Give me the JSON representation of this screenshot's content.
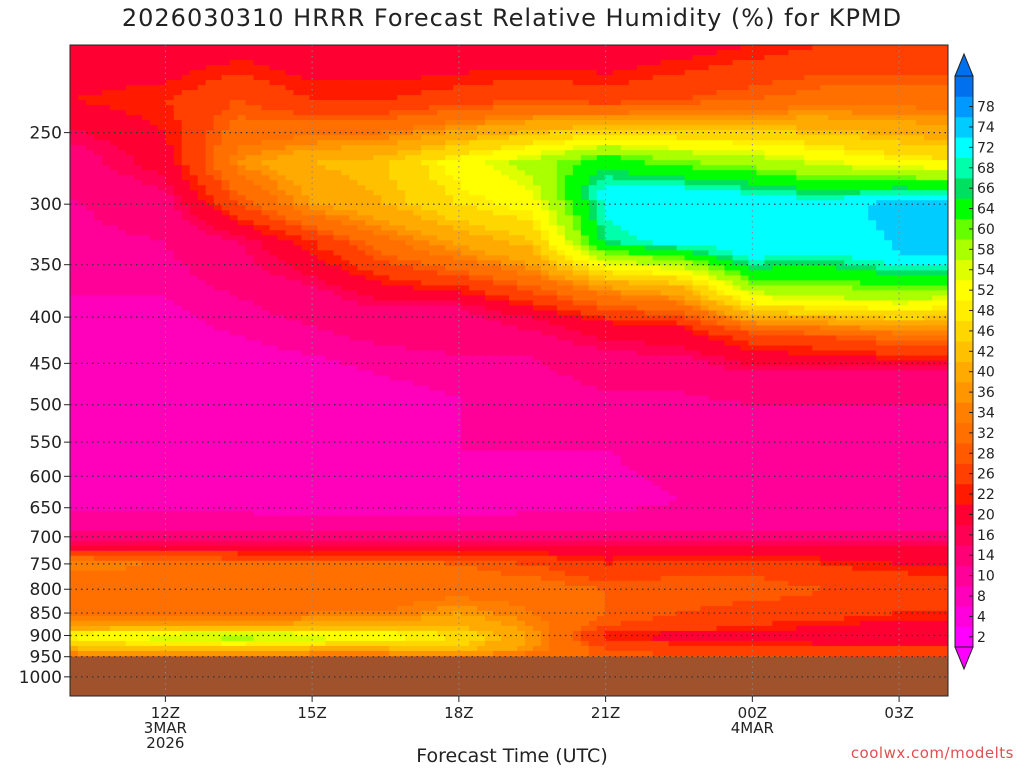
{
  "chart_data": {
    "type": "heatmap",
    "title": "2026030310 HRRR Forecast Relative Humidity (%) for KPMD",
    "xlabel": "Forecast Time (UTC)",
    "ylabel": "",
    "credit": "coolwx.com/modelts",
    "x_ticks": [
      {
        "hour": 12,
        "lines": [
          "12Z",
          "3MAR",
          "2026"
        ]
      },
      {
        "hour": 15,
        "lines": [
          "15Z"
        ]
      },
      {
        "hour": 18,
        "lines": [
          "18Z"
        ]
      },
      {
        "hour": 21,
        "lines": [
          "21Z"
        ]
      },
      {
        "hour": 24,
        "lines": [
          "00Z",
          "4MAR"
        ]
      },
      {
        "hour": 27,
        "lines": [
          "03Z"
        ]
      }
    ],
    "xlim": [
      10.05,
      28.0
    ],
    "y_ticks": [
      250,
      300,
      350,
      400,
      450,
      500,
      550,
      600,
      650,
      700,
      750,
      800,
      850,
      900,
      950,
      1000
    ],
    "ylim_hpa": [
      200,
      1050
    ],
    "y_scale": "log-pressure",
    "terrain_top_hpa": 950,
    "terrain_color": "#a0522d",
    "colorbar_levels": [
      2,
      4,
      8,
      10,
      14,
      16,
      20,
      22,
      26,
      28,
      32,
      34,
      36,
      40,
      42,
      46,
      48,
      52,
      54,
      58,
      60,
      64,
      66,
      68,
      72,
      74,
      78
    ],
    "colorbar_colors": [
      "#ff00ff",
      "#ff00dd",
      "#ff00bb",
      "#ff0099",
      "#ff0077",
      "#ff0055",
      "#ff0033",
      "#ff1a00",
      "#ff4000",
      "#ff5a00",
      "#ff7000",
      "#ff8000",
      "#ff9600",
      "#ffaa00",
      "#ffc000",
      "#ffd700",
      "#ffee00",
      "#ffff00",
      "#ddff00",
      "#aaff00",
      "#66ff00",
      "#00ff00",
      "#00e060",
      "#00ffaa",
      "#00ffff",
      "#00ccff",
      "#0099ff",
      "#0070ee"
    ],
    "rh_profiles": [
      {
        "hour": 10.05,
        "p": [
          200,
          230,
          265,
          290,
          330,
          380,
          440,
          490,
          560,
          640,
          690,
          720,
          750,
          800,
          850,
          880,
          900,
          930,
          950
        ],
        "rh": [
          16,
          20,
          12,
          10,
          9,
          8,
          5,
          4,
          7,
          7,
          10,
          18,
          34,
          28,
          30,
          36,
          50,
          40,
          30
        ]
      },
      {
        "hour": 12.0,
        "p": [
          200,
          230,
          270,
          300,
          330,
          380,
          440,
          490,
          560,
          640,
          690,
          720,
          750,
          800,
          850,
          880,
          900,
          930,
          950
        ],
        "rh": [
          16,
          22,
          18,
          12,
          10,
          8,
          6,
          4,
          8,
          7,
          10,
          18,
          32,
          28,
          30,
          38,
          56,
          42,
          30
        ]
      },
      {
        "hour": 13.5,
        "p": [
          200,
          230,
          270,
          300,
          330,
          380,
          440,
          490,
          560,
          640,
          690,
          720,
          750,
          800,
          850,
          880,
          900,
          930,
          950
        ],
        "rh": [
          18,
          26,
          34,
          26,
          14,
          10,
          7,
          5,
          8,
          7,
          10,
          18,
          30,
          28,
          30,
          36,
          58,
          42,
          30
        ]
      },
      {
        "hour": 15.0,
        "p": [
          200,
          230,
          270,
          300,
          330,
          380,
          440,
          490,
          560,
          640,
          690,
          720,
          750,
          800,
          850,
          880,
          900,
          930,
          950
        ],
        "rh": [
          16,
          22,
          40,
          36,
          22,
          12,
          8,
          6,
          8,
          6,
          10,
          18,
          30,
          28,
          32,
          38,
          56,
          40,
          30
        ]
      },
      {
        "hour": 16.5,
        "p": [
          200,
          230,
          270,
          300,
          340,
          390,
          440,
          490,
          560,
          640,
          690,
          720,
          750,
          800,
          850,
          880,
          900,
          930,
          950
        ],
        "rh": [
          16,
          22,
          42,
          40,
          28,
          14,
          9,
          7,
          8,
          6,
          10,
          18,
          30,
          30,
          32,
          38,
          52,
          40,
          30
        ]
      },
      {
        "hour": 18.0,
        "p": [
          200,
          230,
          270,
          300,
          340,
          390,
          440,
          490,
          560,
          640,
          690,
          720,
          750,
          800,
          850,
          880,
          900,
          930,
          950
        ],
        "rh": [
          16,
          24,
          50,
          46,
          34,
          14,
          10,
          8,
          8,
          6,
          10,
          18,
          28,
          30,
          36,
          40,
          46,
          42,
          32
        ]
      },
      {
        "hour": 19.5,
        "p": [
          200,
          230,
          270,
          300,
          350,
          400,
          440,
          490,
          560,
          640,
          690,
          720,
          750,
          800,
          850,
          880,
          900,
          930,
          950
        ],
        "rh": [
          16,
          26,
          56,
          50,
          36,
          16,
          10,
          8,
          8,
          7,
          10,
          18,
          26,
          30,
          32,
          34,
          36,
          34,
          30
        ]
      },
      {
        "hour": 21.0,
        "p": [
          200,
          230,
          265,
          290,
          330,
          370,
          410,
          450,
          500,
          560,
          640,
          690,
          720,
          750,
          800,
          850,
          880,
          900,
          930,
          950
        ],
        "rh": [
          16,
          24,
          60,
          70,
          66,
          36,
          18,
          12,
          9,
          8,
          7,
          10,
          16,
          22,
          28,
          28,
          26,
          20,
          26,
          28
        ]
      },
      {
        "hour": 22.5,
        "p": [
          200,
          230,
          265,
          295,
          330,
          370,
          410,
          450,
          500,
          560,
          640,
          690,
          720,
          750,
          800,
          850,
          880,
          900,
          930,
          950
        ],
        "rh": [
          18,
          26,
          56,
          72,
          70,
          40,
          20,
          12,
          9,
          9,
          8,
          10,
          16,
          24,
          28,
          26,
          24,
          18,
          24,
          26
        ]
      },
      {
        "hour": 24.0,
        "p": [
          200,
          230,
          265,
          300,
          340,
          380,
          420,
          460,
          500,
          560,
          640,
          690,
          720,
          750,
          800,
          850,
          880,
          900,
          930,
          950
        ],
        "rh": [
          20,
          28,
          54,
          72,
          70,
          52,
          24,
          14,
          10,
          9,
          8,
          10,
          16,
          24,
          28,
          24,
          22,
          18,
          24,
          26
        ]
      },
      {
        "hour": 25.5,
        "p": [
          200,
          230,
          265,
          300,
          340,
          380,
          420,
          460,
          500,
          560,
          640,
          690,
          720,
          750,
          800,
          850,
          880,
          900,
          930,
          950
        ],
        "rh": [
          22,
          30,
          50,
          70,
          68,
          54,
          26,
          14,
          10,
          9,
          8,
          10,
          16,
          22,
          26,
          24,
          20,
          16,
          22,
          26
        ]
      },
      {
        "hour": 27.0,
        "p": [
          200,
          230,
          265,
          300,
          340,
          380,
          420,
          460,
          500,
          560,
          640,
          690,
          720,
          750,
          800,
          850,
          880,
          900,
          930,
          950
        ],
        "rh": [
          22,
          30,
          46,
          74,
          72,
          56,
          30,
          14,
          10,
          9,
          8,
          10,
          16,
          20,
          26,
          22,
          18,
          16,
          22,
          24
        ]
      },
      {
        "hour": 28.0,
        "p": [
          200,
          230,
          265,
          300,
          340,
          380,
          420,
          460,
          500,
          560,
          640,
          690,
          720,
          750,
          800,
          850,
          880,
          900,
          930,
          950
        ],
        "rh": [
          22,
          30,
          44,
          74,
          72,
          54,
          30,
          14,
          10,
          9,
          8,
          10,
          16,
          20,
          24,
          22,
          18,
          16,
          22,
          24
        ]
      }
    ]
  }
}
